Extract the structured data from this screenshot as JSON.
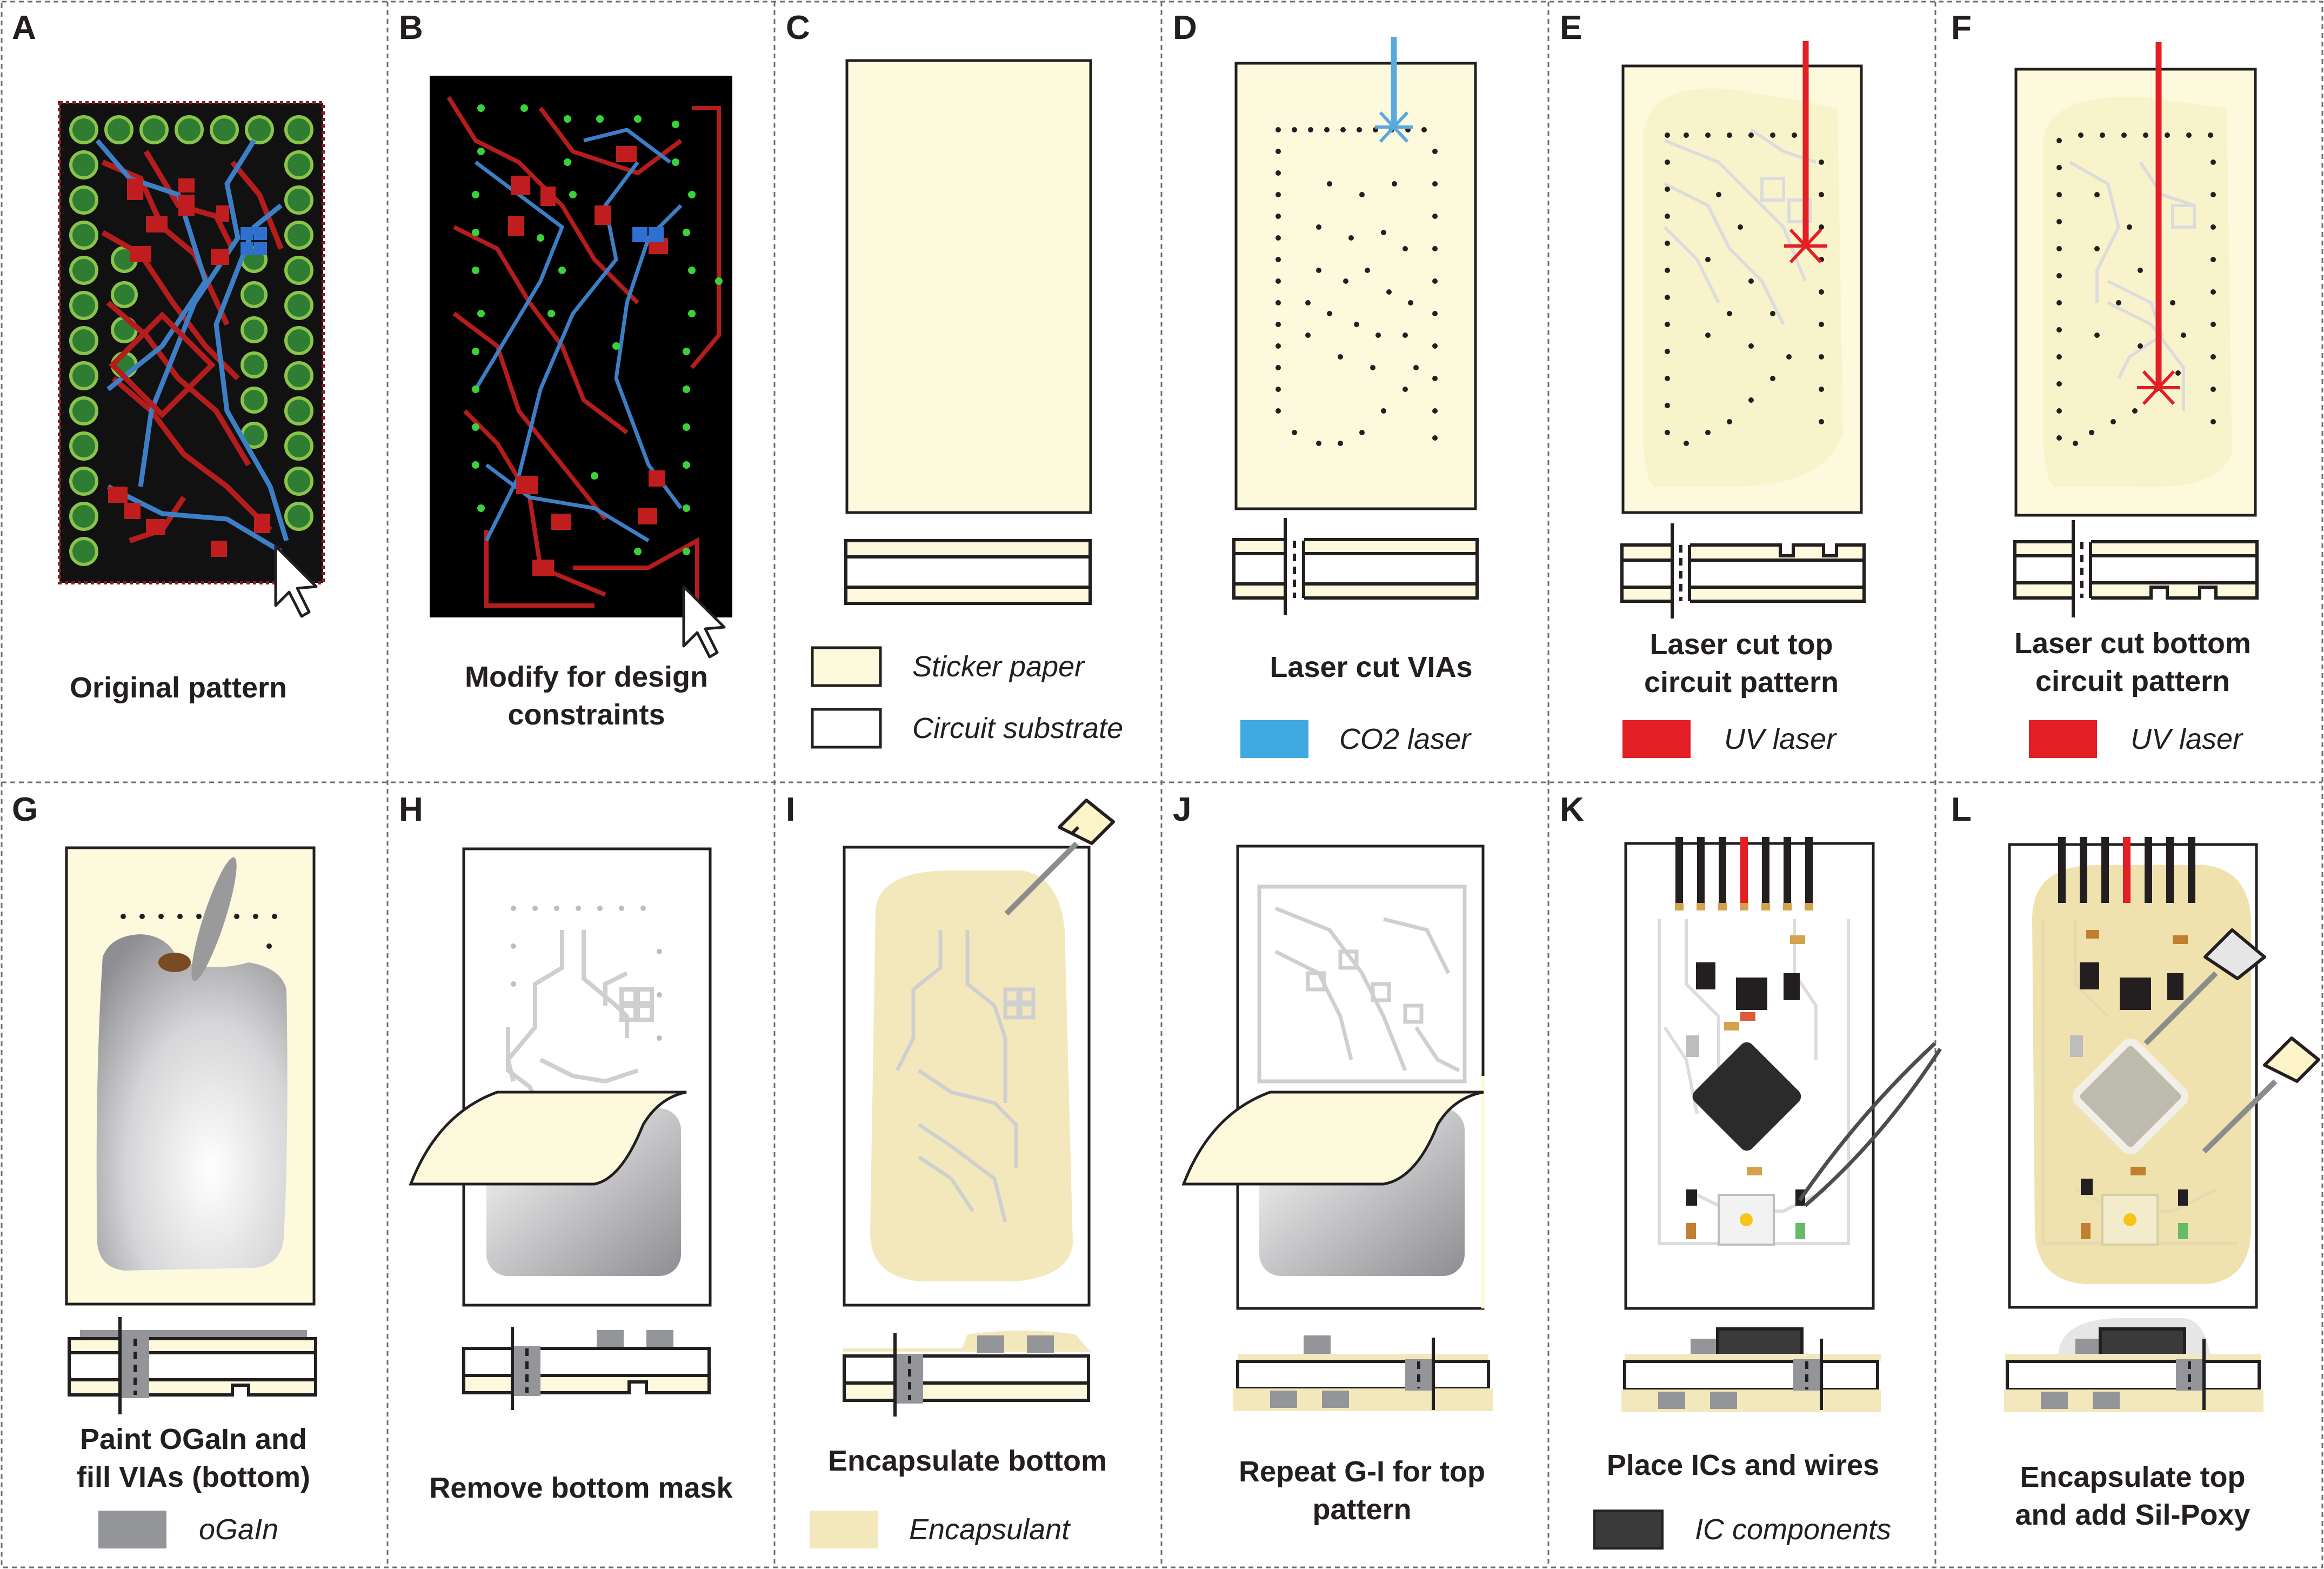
{
  "figure": {
    "panels": [
      {
        "letter": "A",
        "caption": [
          "Original pattern"
        ]
      },
      {
        "letter": "B",
        "caption": [
          "Modify for design",
          "constraints"
        ]
      },
      {
        "letter": "C",
        "caption": [],
        "legend": [
          {
            "text": "Sticker paper",
            "color": "#fcf9dd"
          },
          {
            "text": "Circuit substrate",
            "color": "#ffffff"
          }
        ]
      },
      {
        "letter": "D",
        "caption": [
          "Laser cut VIAs"
        ],
        "legend": [
          {
            "text": "CO2 laser",
            "color": "#3fa9e0"
          }
        ]
      },
      {
        "letter": "E",
        "caption": [
          "Laser cut top",
          "circuit pattern"
        ],
        "legend": [
          {
            "text": "UV laser",
            "color": "#e31e24"
          }
        ]
      },
      {
        "letter": "F",
        "caption": [
          "Laser cut bottom",
          "circuit pattern"
        ],
        "legend": [
          {
            "text": "UV laser",
            "color": "#e31e24"
          }
        ]
      },
      {
        "letter": "G",
        "caption": [
          "Paint OGaIn and",
          "fill VIAs (bottom)"
        ],
        "legend": [
          {
            "text": "oGaIn",
            "color": "#939598"
          }
        ]
      },
      {
        "letter": "H",
        "caption": [
          "Remove bottom mask"
        ]
      },
      {
        "letter": "I",
        "caption": [
          "Encapsulate bottom"
        ],
        "legend": [
          {
            "text": "Encapsulant",
            "color": "#f3e8bc"
          }
        ]
      },
      {
        "letter": "J",
        "caption": [
          "Repeat G-I for top",
          "pattern"
        ]
      },
      {
        "letter": "K",
        "caption": [
          "Place ICs and wires"
        ],
        "legend": [
          {
            "text": "IC components",
            "color": "#3a3a3a"
          }
        ]
      },
      {
        "letter": "L",
        "caption": [
          "Encapsulate top",
          "and add Sil-Poxy"
        ]
      }
    ]
  }
}
